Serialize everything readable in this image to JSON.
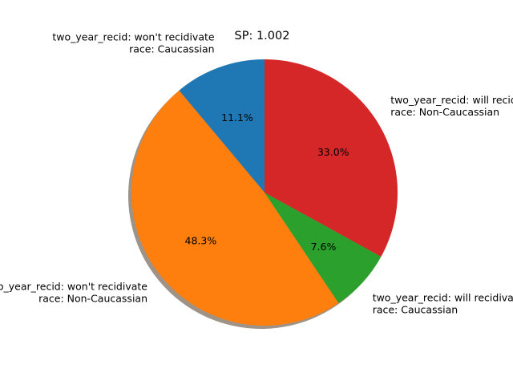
{
  "chart_data": {
    "type": "pie",
    "title": "SP: 1.002",
    "start_angle_deg": 90,
    "direction": "counterclockwise",
    "shadow": true,
    "slices": [
      {
        "label_lines": [
          "two_year_recid: won't recidivate",
          "race: Caucassian"
        ],
        "value": 11.1,
        "pct_label": "11.1%",
        "color": "#1f77b4"
      },
      {
        "label_lines": [
          "two_year_recid: won't recidivate",
          "race: Non-Caucassian"
        ],
        "value": 48.3,
        "pct_label": "48.3%",
        "color": "#ff7f0e"
      },
      {
        "label_lines": [
          "two_year_recid: will recidivate",
          "race: Caucassian"
        ],
        "value": 7.6,
        "pct_label": "7.6%",
        "color": "#2ca02c"
      },
      {
        "label_lines": [
          "two_year_recid: will recidivate",
          "race: Non-Caucassian"
        ],
        "value": 33.0,
        "pct_label": "33.0%",
        "color": "#d62728"
      }
    ]
  }
}
